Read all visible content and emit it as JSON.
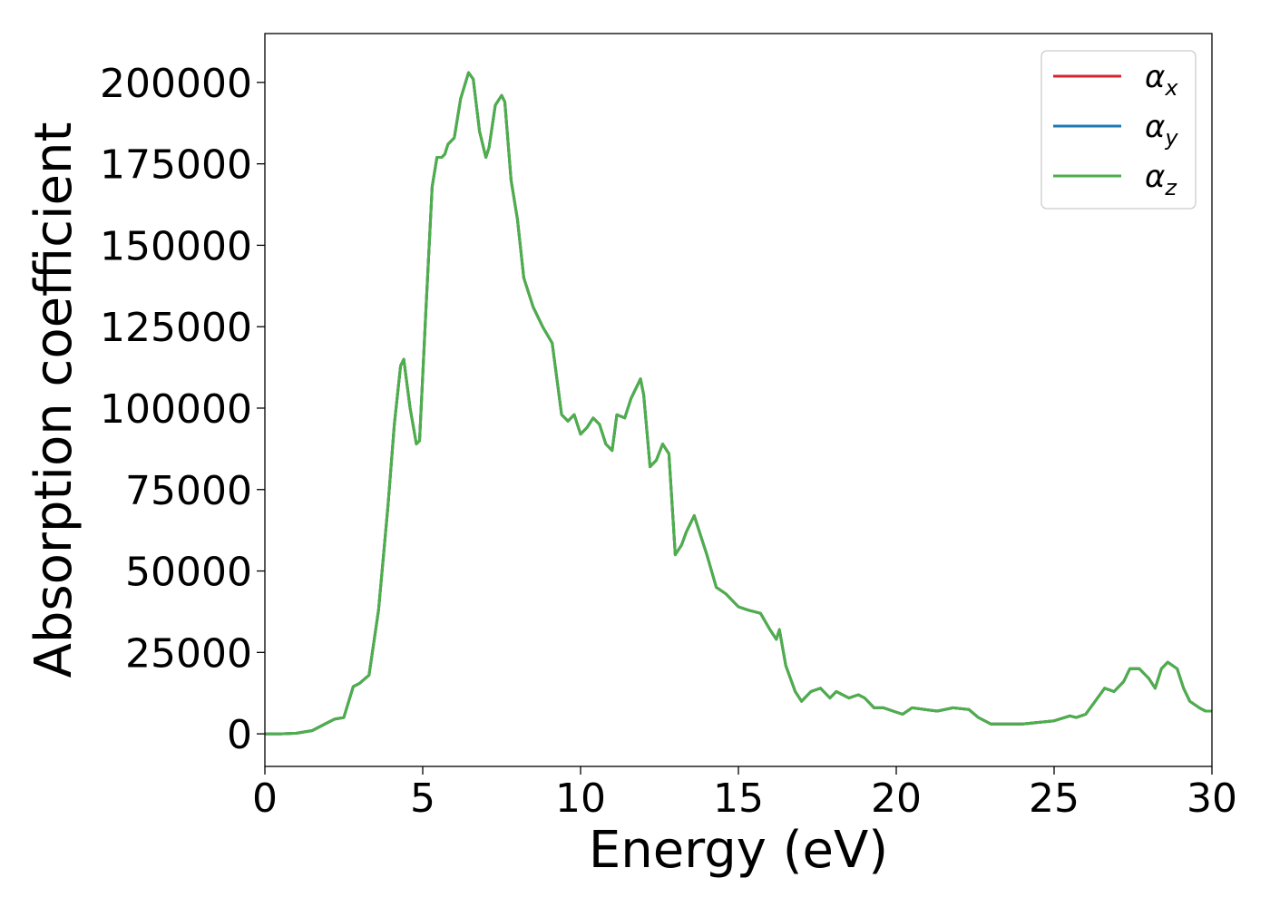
{
  "chart_data": {
    "type": "line",
    "title": "",
    "xlabel": "Energy (eV)",
    "ylabel": "Absorption coefficient",
    "xlim": [
      0,
      30
    ],
    "ylim": [
      -10000,
      215000
    ],
    "xticks": [
      0,
      5,
      10,
      15,
      20,
      25,
      30
    ],
    "xtick_labels": [
      "0",
      "5",
      "10",
      "15",
      "20",
      "25",
      "30"
    ],
    "yticks": [
      0,
      25000,
      50000,
      75000,
      100000,
      125000,
      150000,
      175000,
      200000
    ],
    "ytick_labels": [
      "0",
      "25000",
      "50000",
      "75000",
      "100000",
      "125000",
      "150000",
      "175000",
      "200000"
    ],
    "grid": false,
    "legend_position": "top-right",
    "x": [
      0,
      0.5,
      1.0,
      1.5,
      2.0,
      2.2,
      2.5,
      2.8,
      3.0,
      3.3,
      3.6,
      3.9,
      4.1,
      4.3,
      4.4,
      4.6,
      4.8,
      4.9,
      5.1,
      5.3,
      5.45,
      5.6,
      5.7,
      5.8,
      6.0,
      6.2,
      6.45,
      6.6,
      6.8,
      7.0,
      7.1,
      7.3,
      7.5,
      7.6,
      7.8,
      8.0,
      8.2,
      8.5,
      8.8,
      9.1,
      9.4,
      9.6,
      9.8,
      10.0,
      10.2,
      10.4,
      10.6,
      10.8,
      11.0,
      11.15,
      11.4,
      11.6,
      11.9,
      12.0,
      12.2,
      12.4,
      12.6,
      12.8,
      13.0,
      13.2,
      13.35,
      13.6,
      13.8,
      14.0,
      14.3,
      14.6,
      15.0,
      15.3,
      15.7,
      16.0,
      16.2,
      16.3,
      16.5,
      16.8,
      17.0,
      17.3,
      17.6,
      17.9,
      18.1,
      18.3,
      18.5,
      18.8,
      19.0,
      19.3,
      19.6,
      19.9,
      20.2,
      20.5,
      20.9,
      21.3,
      21.8,
      22.3,
      22.6,
      23.0,
      23.5,
      24.0,
      24.5,
      25.0,
      25.5,
      25.7,
      26.0,
      26.3,
      26.6,
      26.9,
      27.2,
      27.4,
      27.7,
      28.0,
      28.2,
      28.4,
      28.6,
      28.9,
      29.1,
      29.3,
      29.6,
      29.8,
      30.0
    ],
    "series": [
      {
        "name": "α",
        "subscript": "x",
        "color": "#d62728",
        "values": [
          0,
          0,
          200,
          1000,
          3500,
          4500,
          5000,
          14500,
          15500,
          18000,
          38000,
          70000,
          95000,
          113000,
          115000,
          100000,
          89000,
          90000,
          130000,
          168000,
          177000,
          177000,
          178000,
          181000,
          183000,
          195000,
          203000,
          201000,
          185000,
          177000,
          180000,
          193000,
          196000,
          194000,
          170000,
          158000,
          140000,
          131000,
          125000,
          120000,
          98000,
          96000,
          98000,
          92000,
          94000,
          97000,
          95000,
          89000,
          87000,
          98000,
          97000,
          103000,
          109000,
          104000,
          82000,
          84000,
          89000,
          86000,
          55000,
          58000,
          62000,
          67000,
          61000,
          55000,
          45000,
          43000,
          39000,
          38000,
          37000,
          32000,
          29000,
          32000,
          21000,
          13000,
          10000,
          13000,
          14000,
          11000,
          13000,
          12000,
          11000,
          12000,
          11000,
          8000,
          8000,
          7000,
          6000,
          8000,
          7500,
          7000,
          8000,
          7500,
          5000,
          3000,
          3000,
          3000,
          3500,
          4000,
          5500,
          5000,
          6000,
          10000,
          14000,
          13000,
          16000,
          20000,
          20000,
          17000,
          14000,
          20000,
          22000,
          20000,
          14000,
          10000,
          8000,
          7000,
          7000
        ]
      },
      {
        "name": "α",
        "subscript": "y",
        "color": "#1f77b4",
        "values": [
          0,
          0,
          200,
          1000,
          3500,
          4500,
          5000,
          14500,
          15500,
          18000,
          38000,
          70000,
          95000,
          113000,
          115000,
          100000,
          89000,
          90000,
          130000,
          168000,
          177000,
          177000,
          178000,
          181000,
          183000,
          195000,
          203000,
          201000,
          185000,
          177000,
          180000,
          193000,
          196000,
          194000,
          170000,
          158000,
          140000,
          131000,
          125000,
          120000,
          98000,
          96000,
          98000,
          92000,
          94000,
          97000,
          95000,
          89000,
          87000,
          98000,
          97000,
          103000,
          109000,
          104000,
          82000,
          84000,
          89000,
          86000,
          55000,
          58000,
          62000,
          67000,
          61000,
          55000,
          45000,
          43000,
          39000,
          38000,
          37000,
          32000,
          29000,
          32000,
          21000,
          13000,
          10000,
          13000,
          14000,
          11000,
          13000,
          12000,
          11000,
          12000,
          11000,
          8000,
          8000,
          7000,
          6000,
          8000,
          7500,
          7000,
          8000,
          7500,
          5000,
          3000,
          3000,
          3000,
          3500,
          4000,
          5500,
          5000,
          6000,
          10000,
          14000,
          13000,
          16000,
          20000,
          20000,
          17000,
          14000,
          20000,
          22000,
          20000,
          14000,
          10000,
          8000,
          7000,
          7000
        ]
      },
      {
        "name": "α",
        "subscript": "z",
        "color": "#4daf4a",
        "values": [
          0,
          0,
          200,
          1000,
          3500,
          4500,
          5000,
          14500,
          15500,
          18000,
          38000,
          70000,
          95000,
          113000,
          115000,
          100000,
          89000,
          90000,
          130000,
          168000,
          177000,
          177000,
          178000,
          181000,
          183000,
          195000,
          203000,
          201000,
          185000,
          177000,
          180000,
          193000,
          196000,
          194000,
          170000,
          158000,
          140000,
          131000,
          125000,
          120000,
          98000,
          96000,
          98000,
          92000,
          94000,
          97000,
          95000,
          89000,
          87000,
          98000,
          97000,
          103000,
          109000,
          104000,
          82000,
          84000,
          89000,
          86000,
          55000,
          58000,
          62000,
          67000,
          61000,
          55000,
          45000,
          43000,
          39000,
          38000,
          37000,
          32000,
          29000,
          32000,
          21000,
          13000,
          10000,
          13000,
          14000,
          11000,
          13000,
          12000,
          11000,
          12000,
          11000,
          8000,
          8000,
          7000,
          6000,
          8000,
          7500,
          7000,
          8000,
          7500,
          5000,
          3000,
          3000,
          3000,
          3500,
          4000,
          5500,
          5000,
          6000,
          10000,
          14000,
          13000,
          16000,
          20000,
          20000,
          17000,
          14000,
          20000,
          22000,
          20000,
          14000,
          10000,
          8000,
          7000,
          7000
        ]
      }
    ]
  }
}
